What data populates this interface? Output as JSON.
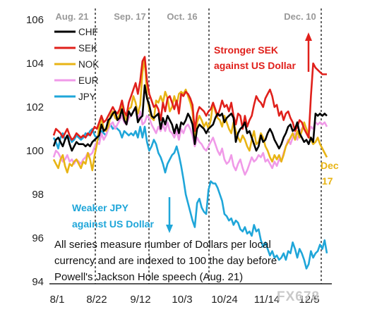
{
  "chart_data": {
    "type": "line",
    "x_ticks": [
      "8/1",
      "8/22",
      "9/12",
      "10/3",
      "10/24",
      "11/14",
      "12/5"
    ],
    "ylim": [
      94,
      106
    ],
    "y_ticks": [
      "94",
      "96",
      "98",
      "100",
      "102",
      "104",
      "106"
    ],
    "grid": false,
    "legend_placement": "top-left",
    "vertical_markers": [
      "Aug. 21",
      "Sep. 17",
      "Oct. 16",
      "Dec. 10"
    ],
    "series": [
      {
        "name": "CHF",
        "color": "#000000",
        "values": [
          100.2,
          100.5,
          100.6,
          100.4,
          100.2,
          100.5,
          100.7,
          100.3,
          100.0,
          100.2,
          100.4,
          100.3,
          100.3,
          100.3,
          100.2,
          100.3,
          100.2,
          100.4,
          100.5,
          100.6,
          100.7,
          101.2,
          100.9,
          101.0,
          101.4,
          101.5,
          101.7,
          101.8,
          101.4,
          101.5,
          101.9,
          101.4,
          101.2,
          101.8,
          101.6,
          101.8,
          102.0,
          101.3,
          101.5,
          101.6,
          103.0,
          102.4,
          102.1,
          101.6,
          101.5,
          101.6,
          101.7,
          101.0,
          101.5,
          101.2,
          101.6,
          101.4,
          101.2,
          100.8,
          101.2,
          100.8,
          101.3,
          101.2,
          101.4,
          101.7,
          101.5,
          101.2,
          100.3,
          101.0,
          101.2,
          101.1,
          101.0,
          100.8,
          101.0,
          101.1,
          101.2,
          101.5,
          101.7,
          101.6,
          101.7,
          101.3,
          101.5,
          101.6,
          101.7,
          101.5,
          100.4,
          100.8,
          101.0,
          101.1,
          101.3,
          100.8,
          100.9,
          100.6,
          100.3,
          100.0,
          100.2,
          100.7,
          100.4,
          100.5,
          100.8,
          101.0,
          100.8,
          100.5,
          100.3,
          100.1,
          100.3,
          100.6,
          100.8,
          101.1,
          101.2,
          100.9,
          101.0,
          101.3,
          100.8,
          100.6,
          100.4,
          100.5,
          100.3,
          100.6,
          100.4,
          101.7,
          101.6,
          101.7,
          101.6,
          101.7,
          101.6
        ]
      },
      {
        "name": "SEK",
        "color": "#e0201b",
        "values": [
          100.7,
          101.0,
          100.9,
          100.8,
          100.6,
          100.8,
          101.0,
          100.7,
          100.5,
          100.6,
          100.8,
          100.7,
          100.6,
          100.7,
          100.6,
          100.8,
          100.7,
          100.9,
          101.1,
          101.0,
          101.3,
          101.6,
          101.3,
          101.4,
          101.6,
          101.8,
          102.0,
          101.8,
          101.7,
          101.9,
          102.3,
          101.8,
          101.6,
          102.2,
          102.5,
          102.8,
          103.1,
          102.6,
          103.2,
          104.1,
          104.3,
          103.2,
          102.6,
          102.3,
          102.0,
          102.1,
          101.9,
          101.4,
          102.2,
          101.8,
          102.4,
          102.5,
          102.2,
          101.9,
          102.3,
          101.7,
          102.6,
          102.5,
          102.7,
          102.6,
          102.4,
          102.1,
          100.9,
          101.7,
          102.0,
          101.9,
          101.8,
          101.6,
          101.8,
          101.9,
          102.2,
          101.9,
          101.6,
          101.9,
          102.3,
          102.0,
          102.1,
          101.8,
          102.2,
          101.6,
          101.2,
          101.7,
          101.6,
          101.0,
          101.6,
          101.1,
          101.4,
          101.6,
          102.1,
          102.5,
          102.3,
          102.2,
          102.0,
          102.4,
          102.6,
          102.8,
          102.5,
          102.0,
          102.1,
          101.6,
          101.8,
          101.4,
          101.7,
          101.8,
          101.5,
          101.3,
          100.9,
          101.1,
          101.4,
          101.3,
          101.0,
          100.8,
          100.6,
          102.5,
          104.0,
          103.8,
          103.7,
          103.6,
          103.5,
          103.5,
          103.5
        ]
      },
      {
        "name": "NOK",
        "color": "#e8b415",
        "values": [
          99.6,
          99.4,
          99.2,
          99.6,
          99.8,
          99.3,
          99.0,
          99.4,
          99.3,
          99.5,
          99.6,
          99.4,
          99.2,
          99.5,
          99.4,
          99.9,
          99.6,
          99.1,
          99.8,
          100.3,
          101.1,
          101.5,
          101.0,
          100.9,
          101.1,
          101.6,
          101.8,
          101.5,
          101.4,
          101.7,
          102.1,
          101.6,
          101.4,
          101.9,
          102.0,
          102.5,
          102.2,
          101.7,
          102.1,
          103.6,
          104.2,
          102.5,
          101.9,
          101.5,
          101.4,
          102.3,
          102.2,
          102.5,
          102.2,
          102.7,
          102.4,
          101.8,
          102.0,
          102.5,
          102.1,
          102.6,
          102.7,
          102.6,
          102.8,
          102.5,
          102.2,
          101.8,
          100.5,
          101.3,
          101.6,
          101.4,
          101.1,
          101.3,
          101.0,
          101.4,
          102.2,
          101.8,
          101.5,
          101.4,
          101.1,
          101.6,
          101.3,
          101.0,
          100.8,
          101.3,
          100.9,
          100.6,
          100.4,
          100.7,
          100.5,
          100.2,
          100.0,
          100.5,
          100.9,
          100.3,
          100.4,
          100.8,
          100.6,
          100.2,
          100.0,
          99.7,
          99.5,
          99.8,
          99.6,
          99.8,
          99.5,
          99.8,
          100.2,
          100.4,
          100.6,
          100.8,
          100.5,
          100.9,
          100.6,
          100.9,
          101.3,
          101.0,
          100.7,
          100.5,
          100.3,
          100.4,
          100.6,
          100.3,
          100.1,
          99.9,
          99.7
        ]
      },
      {
        "name": "EUR",
        "color": "#f09ae8",
        "values": [
          99.7,
          100.0,
          99.9,
          99.7,
          99.5,
          99.6,
          99.8,
          99.5,
          99.6,
          99.4,
          99.6,
          99.5,
          99.4,
          99.6,
          99.7,
          99.9,
          99.8,
          99.9,
          100.2,
          100.4,
          100.3,
          100.8,
          100.5,
          100.7,
          101.0,
          101.2,
          101.3,
          101.0,
          101.2,
          101.4,
          101.6,
          101.3,
          101.2,
          101.5,
          101.6,
          101.8,
          101.9,
          101.4,
          101.8,
          101.2,
          101.3,
          101.6,
          101.5,
          101.2,
          101.0,
          100.8,
          101.1,
          100.9,
          101.2,
          100.9,
          101.3,
          100.9,
          100.8,
          100.6,
          100.9,
          100.5,
          101.0,
          100.8,
          101.1,
          101.2,
          101.0,
          100.7,
          100.2,
          100.6,
          100.4,
          100.3,
          100.1,
          100.0,
          100.2,
          100.4,
          100.6,
          100.3,
          100.0,
          99.8,
          100.1,
          99.6,
          99.4,
          99.5,
          99.8,
          99.3,
          99.1,
          99.4,
          99.6,
          99.2,
          98.9,
          99.1,
          99.4,
          99.7,
          99.5,
          99.6,
          99.8,
          99.7,
          99.9,
          99.5,
          99.6,
          99.4,
          99.2,
          99.5,
          99.3,
          99.6,
          99.5,
          99.9,
          100.2,
          100.5,
          100.3,
          100.6,
          100.8,
          100.5,
          100.9,
          101.0,
          101.2,
          101.0,
          100.8,
          101.1,
          101.0,
          101.3,
          101.2,
          101.3,
          101.2,
          101.3,
          101.1
        ]
      },
      {
        "name": "JPY",
        "color": "#1fa6d9",
        "values": [
          100.6,
          100.4,
          100.1,
          100.6,
          100.8,
          100.5,
          100.7,
          100.6,
          100.4,
          100.5,
          100.7,
          100.6,
          100.5,
          100.6,
          100.8,
          100.7,
          100.9,
          101.0,
          100.7,
          100.6,
          100.5,
          100.9,
          100.8,
          100.7,
          101.0,
          101.2,
          101.0,
          101.1,
          101.0,
          100.9,
          100.6,
          100.9,
          100.8,
          100.7,
          100.8,
          100.7,
          100.9,
          100.6,
          101.1,
          100.6,
          101.1,
          100.4,
          100.0,
          100.2,
          100.5,
          100.3,
          99.9,
          99.7,
          99.4,
          99.0,
          99.4,
          99.6,
          99.8,
          99.9,
          100.2,
          99.8,
          99.3,
          98.7,
          98.0,
          97.6,
          97.2,
          96.8,
          96.5,
          97.6,
          97.8,
          97.4,
          97.2,
          97.1,
          98.2,
          98.6,
          98.5,
          98.5,
          98.3,
          98.0,
          97.7,
          97.1,
          97.0,
          96.8,
          96.9,
          96.6,
          96.8,
          96.7,
          96.4,
          96.3,
          96.5,
          96.2,
          96.3,
          96.1,
          96.6,
          96.3,
          96.4,
          95.9,
          95.6,
          95.8,
          95.5,
          95.2,
          95.4,
          95.1,
          95.2,
          95.0,
          95.1,
          95.3,
          95.0,
          95.4,
          95.3,
          95.8,
          95.5,
          95.1,
          95.5,
          95.3,
          95.0,
          94.6,
          94.8,
          95.4,
          95.1,
          95.3,
          95.4,
          95.7,
          95.5,
          95.9,
          95.3
        ]
      }
    ],
    "annotations": {
      "sek": [
        "Stronger SEK",
        "against US Dollar"
      ],
      "jpy": [
        "Weaker JPY",
        "against US Dollar"
      ],
      "nok_end": [
        "Dec",
        "17"
      ],
      "note": [
        "All series measure number of Dollars per local",
        "currency and are indexed to 100 the day before",
        "Powell's Jackson Hole speech (Aug. 21)"
      ]
    }
  },
  "watermark": "FX678"
}
